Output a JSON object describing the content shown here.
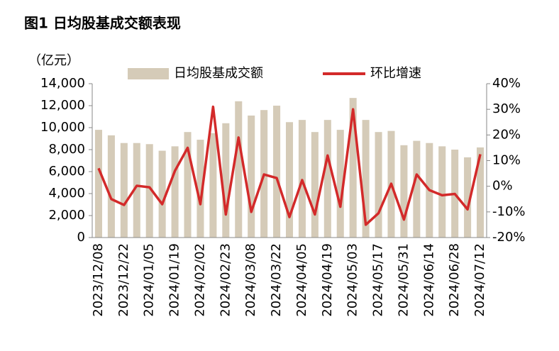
{
  "chart_data": {
    "type": "bar_line",
    "title": "图1    日均股基成交额表现",
    "y_label": "（亿元）",
    "categories": [
      "2023/12/08",
      null,
      "2023/12/22",
      null,
      "2024/01/05",
      null,
      "2024/01/19",
      null,
      "2024/02/02",
      null,
      "2024/02/23",
      null,
      "2024/03/08",
      null,
      "2024/03/22",
      null,
      "2024/04/05",
      null,
      "2024/04/19",
      null,
      "2024/05/03",
      null,
      "2024/05/17",
      null,
      "2024/05/31",
      null,
      "2024/06/14",
      null,
      "2024/06/28",
      null,
      "2024/07/12"
    ],
    "series": [
      {
        "name": "日均股基成交额",
        "color": "#d5cbb8",
        "type": "bar",
        "values": [
          9800,
          9300,
          8600,
          8600,
          8500,
          7900,
          8300,
          9600,
          8900,
          9500,
          10400,
          12400,
          11100,
          11600,
          12000,
          10500,
          10700,
          9600,
          10700,
          9800,
          12700,
          10700,
          9600,
          9700,
          8400,
          8800,
          8600,
          8300,
          8000,
          7300,
          8200
        ]
      },
      {
        "name": "环比增速",
        "color": "#d32a2a",
        "type": "line",
        "axis": "y2",
        "values": [
          7,
          -5,
          -7.3,
          0.2,
          -0.4,
          -7,
          6,
          15,
          -7,
          31,
          -11,
          19,
          -10,
          4.6,
          3.2,
          -12,
          2.4,
          -11,
          12,
          -8,
          30,
          -15,
          -10.5,
          1,
          -13,
          4.6,
          -1.5,
          -3.5,
          -3,
          -9,
          12.5
        ]
      }
    ],
    "ylim": [
      0,
      14000
    ],
    "yticks": [
      0,
      {
        "value": 2000,
        "label": "2,000"
      },
      {
        "value": 4000,
        "label": "4,000"
      },
      {
        "value": 6000,
        "label": "6,000"
      },
      {
        "value": 8000,
        "label": "8,000"
      },
      {
        "value": 10000,
        "label": "10,000"
      },
      {
        "value": 12000,
        "label": "12,000"
      },
      {
        "value": 14000,
        "label": "14,000"
      }
    ],
    "y2lim": [
      -20,
      40
    ],
    "y2ticks": [
      {
        "value": -20,
        "label": "-20%"
      },
      {
        "value": -10,
        "label": "-10%"
      },
      {
        "value": 0,
        "label": "0%"
      },
      {
        "value": 10,
        "label": "10%"
      },
      {
        "value": 20,
        "label": "20%"
      },
      {
        "value": 30,
        "label": "30%"
      },
      {
        "value": 40,
        "label": "40%"
      }
    ]
  }
}
